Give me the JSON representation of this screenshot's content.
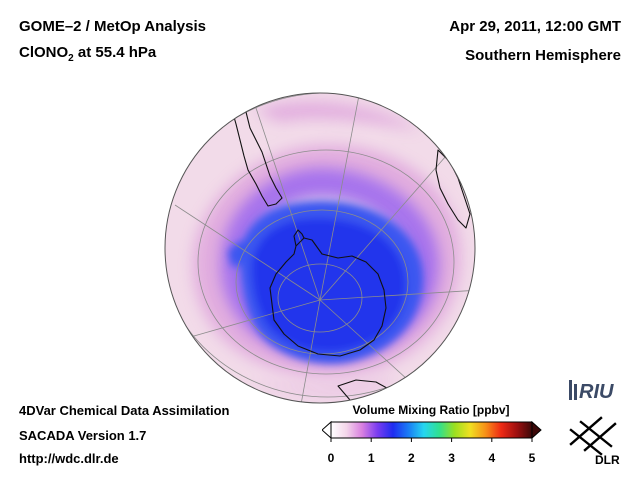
{
  "header": {
    "title_main": "GOME–2 / MetOp Analysis",
    "species_prefix": "ClONO",
    "species_sub": "2",
    "species_suffix": " at 55.4 hPa",
    "datetime": "Apr 29, 2011, 12:00 GMT",
    "hemisphere": "Southern Hemisphere"
  },
  "footer": {
    "line1": "4DVar Chemical Data Assimilation",
    "line2": "SACADA Version 1.7",
    "line3": "http://wdc.dlr.de"
  },
  "colorbar": {
    "title": "Volume Mixing Ratio [ppbv]",
    "min": 0,
    "max": 5,
    "ticks": [
      "0",
      "1",
      "2",
      "3",
      "4",
      "5"
    ],
    "colors": [
      "#ffffff",
      "#f4d6ea",
      "#d980e0",
      "#7a3cf0",
      "#1f2cf0",
      "#1a7cf5",
      "#26d6f0",
      "#30e090",
      "#9be020",
      "#f0e020",
      "#f79018",
      "#ee2a14",
      "#a01010",
      "#3c0808"
    ]
  },
  "logos": {
    "riu": "RIU",
    "dlr": "DLR"
  },
  "colors": {
    "ocean_background": "#f2dbe9",
    "pink_band": "#dfa6dd",
    "purple_band": "#9a63ee",
    "vortex_blue": "#2a45f0",
    "vortex_core": "#1f2cec",
    "coastline": "#111111",
    "graticule": "#8c8c8c"
  }
}
